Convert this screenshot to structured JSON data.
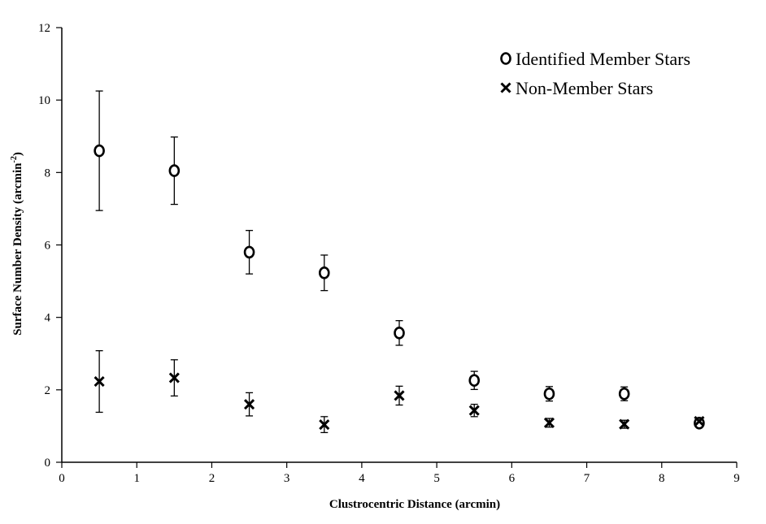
{
  "chart_data": {
    "type": "scatter",
    "title": "",
    "xlabel": "Clustrocentric Distance (arcmin)",
    "ylabel_main": "Surface Number Density (arcmin",
    "ylabel_sup": "-2",
    "ylabel_close": ")",
    "xlim": [
      0,
      9
    ],
    "ylim": [
      0,
      12
    ],
    "xticks": [
      "0",
      "1",
      "2",
      "3",
      "4",
      "5",
      "6",
      "7",
      "8",
      "9"
    ],
    "yticks": [
      "0",
      "2",
      "4",
      "6",
      "8",
      "10",
      "12"
    ],
    "grid": false,
    "legend_position": "top-right",
    "series": [
      {
        "name": "Identified Member Stars",
        "marker": "circle",
        "x": [
          0.5,
          1.5,
          2.5,
          3.5,
          4.5,
          5.5,
          6.5,
          7.5,
          8.5
        ],
        "y": [
          8.6,
          8.05,
          5.8,
          5.23,
          3.57,
          2.26,
          1.89,
          1.89,
          1.08
        ],
        "err": [
          1.65,
          0.93,
          0.6,
          0.49,
          0.34,
          0.25,
          0.2,
          0.19,
          0.1
        ]
      },
      {
        "name": "Non-Member Stars",
        "marker": "x",
        "x": [
          0.5,
          1.5,
          2.5,
          3.5,
          4.5,
          5.5,
          6.5,
          7.5,
          8.5
        ],
        "y": [
          2.23,
          2.33,
          1.6,
          1.04,
          1.84,
          1.43,
          1.09,
          1.05,
          1.13
        ],
        "err": [
          0.85,
          0.5,
          0.32,
          0.22,
          0.26,
          0.17,
          0.12,
          0.11,
          0.1
        ]
      }
    ]
  }
}
